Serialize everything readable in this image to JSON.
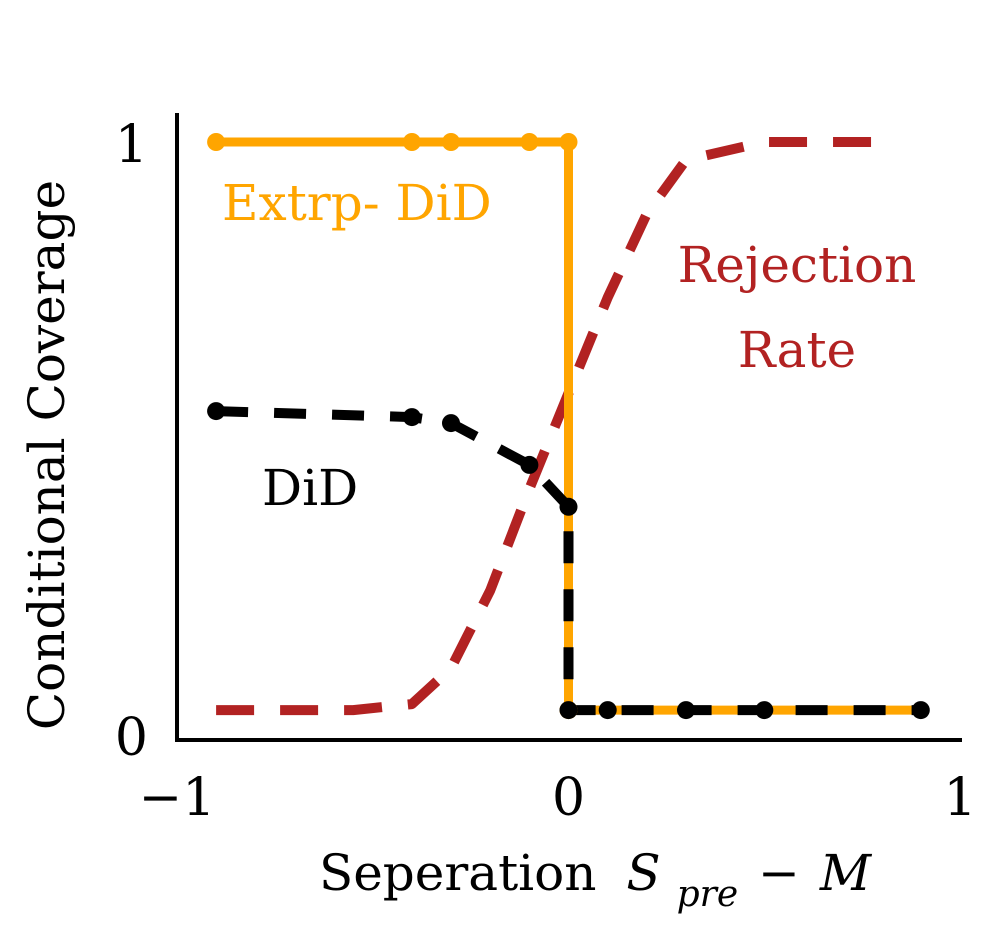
{
  "chart_data": {
    "type": "line",
    "title": "",
    "xlabel_prefix": "Seperation",
    "xlabel_math": {
      "S": "S",
      "sub": "pre",
      "minus": "−",
      "M": "M"
    },
    "ylabel": "Conditional Coverage",
    "xlim": [
      -1,
      1
    ],
    "ylim": [
      0,
      1
    ],
    "x_ticks": [
      {
        "value": -1,
        "label": "−1"
      },
      {
        "value": 0,
        "label": "0"
      },
      {
        "value": 1,
        "label": "1"
      }
    ],
    "y_ticks": [
      {
        "value": 0,
        "label": "0"
      },
      {
        "value": 1,
        "label": "1"
      }
    ],
    "series": [
      {
        "name": "Extrp- DiD",
        "label_lines": [
          "Extrp- DiD"
        ],
        "color": "#FFA500",
        "style": "solid",
        "markers": true,
        "x": [
          -0.9,
          -0.4,
          -0.3,
          -0.1,
          0.0,
          0.0,
          0.1,
          0.3,
          0.5,
          0.9
        ],
        "y": [
          1.0,
          1.0,
          1.0,
          1.0,
          1.0,
          0.05,
          0.05,
          0.05,
          0.05,
          0.05
        ],
        "marker_x": [
          -0.9,
          -0.4,
          -0.3,
          -0.1,
          0.0
        ]
      },
      {
        "name": "DiD",
        "label_lines": [
          "DiD"
        ],
        "color": "#000000",
        "style": "dashed",
        "markers": true,
        "x": [
          -0.9,
          -0.4,
          -0.3,
          -0.1,
          0.0,
          0.0,
          0.1,
          0.3,
          0.5,
          0.9
        ],
        "y": [
          0.55,
          0.54,
          0.53,
          0.46,
          0.39,
          0.05,
          0.05,
          0.05,
          0.05,
          0.05
        ]
      },
      {
        "name": "Rejection Rate",
        "label_lines": [
          "Rejection",
          "Rate"
        ],
        "color": "#B22222",
        "style": "dashed",
        "markers": false,
        "x": [
          -0.9,
          -0.7,
          -0.55,
          -0.4,
          -0.3,
          -0.2,
          -0.1,
          0.0,
          0.1,
          0.2,
          0.3,
          0.5,
          0.8
        ],
        "y": [
          0.05,
          0.05,
          0.05,
          0.06,
          0.12,
          0.25,
          0.42,
          0.58,
          0.74,
          0.88,
          0.97,
          1.0,
          1.0
        ]
      }
    ],
    "grid": false,
    "legend": "inline labels"
  }
}
